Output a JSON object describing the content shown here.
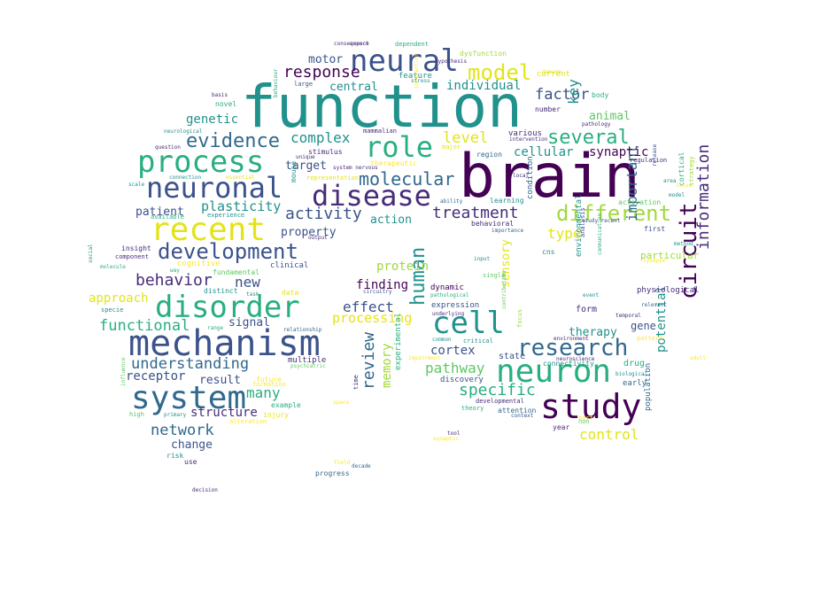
{
  "palette": {
    "dark-purple": "#440154",
    "indigo": "#472c7a",
    "blue": "#3b528b",
    "blue-teal": "#31688e",
    "teal": "#21918c",
    "green-teal": "#29af7f",
    "green": "#5ec962",
    "lime": "#9fda3a",
    "yellow": "#e3e418",
    "yellow-bright": "#fde725"
  },
  "words": [
    {
      "t": "brain",
      "c": "dark-purple"
    },
    {
      "t": "function",
      "c": "teal"
    },
    {
      "t": "neural",
      "c": "blue"
    },
    {
      "t": "mechanism",
      "c": "blue"
    },
    {
      "t": "study",
      "c": "dark-purple"
    },
    {
      "t": "neuron",
      "c": "green-teal"
    },
    {
      "t": "disorder",
      "c": "green-teal"
    },
    {
      "t": "system",
      "c": "blue-teal"
    },
    {
      "t": "process",
      "c": "green-teal"
    },
    {
      "t": "recent",
      "c": "yellow"
    },
    {
      "t": "neuronal",
      "c": "blue"
    },
    {
      "t": "disease",
      "c": "indigo"
    },
    {
      "t": "cell",
      "c": "teal"
    },
    {
      "t": "role",
      "c": "green-teal"
    },
    {
      "t": "circuit",
      "c": "dark-purple"
    },
    {
      "t": "human",
      "c": "teal"
    },
    {
      "t": "model",
      "c": "yellow"
    },
    {
      "t": "research",
      "c": "blue-teal"
    },
    {
      "t": "development",
      "c": "blue"
    },
    {
      "t": "different",
      "c": "lime"
    },
    {
      "t": "evidence",
      "c": "blue-teal"
    },
    {
      "t": "several",
      "c": "green-teal"
    },
    {
      "t": "molecular",
      "c": "blue-teal"
    },
    {
      "t": "response",
      "c": "dark-purple"
    },
    {
      "t": "specific",
      "c": "green-teal"
    },
    {
      "t": "information",
      "c": "indigo"
    },
    {
      "t": "activity",
      "c": "blue"
    },
    {
      "t": "treatment",
      "c": "indigo"
    },
    {
      "t": "behavior",
      "c": "indigo"
    },
    {
      "t": "functional",
      "c": "green-teal"
    },
    {
      "t": "understanding",
      "c": "blue-teal"
    },
    {
      "t": "complex",
      "c": "teal"
    },
    {
      "t": "review",
      "c": "blue-teal"
    },
    {
      "t": "important",
      "c": "blue-teal"
    },
    {
      "t": "pathway",
      "c": "green"
    },
    {
      "t": "level",
      "c": "yellow"
    },
    {
      "t": "factor",
      "c": "blue"
    },
    {
      "t": "network",
      "c": "blue-teal"
    },
    {
      "t": "potential",
      "c": "teal"
    },
    {
      "t": "many",
      "c": "green-teal"
    },
    {
      "t": "control",
      "c": "yellow"
    },
    {
      "t": "type",
      "c": "yellow"
    },
    {
      "t": "individual",
      "c": "teal"
    },
    {
      "t": "sensory",
      "c": "yellow"
    },
    {
      "t": "new",
      "c": "blue"
    },
    {
      "t": "effect",
      "c": "blue"
    },
    {
      "t": "processing",
      "c": "yellow"
    },
    {
      "t": "plasticity",
      "c": "teal"
    },
    {
      "t": "signal",
      "c": "blue"
    },
    {
      "t": "structure",
      "c": "indigo"
    },
    {
      "t": "receptor",
      "c": "blue"
    },
    {
      "t": "cellular",
      "c": "teal"
    },
    {
      "t": "synaptic",
      "c": "dark-purple"
    },
    {
      "t": "approach",
      "c": "yellow"
    },
    {
      "t": "patient",
      "c": "blue"
    },
    {
      "t": "result",
      "c": "blue"
    },
    {
      "t": "cortex",
      "c": "blue"
    },
    {
      "t": "finding",
      "c": "dark-purple"
    },
    {
      "t": "action",
      "c": "teal"
    },
    {
      "t": "target",
      "c": "blue"
    },
    {
      "t": "property",
      "c": "blue"
    },
    {
      "t": "therapy",
      "c": "teal"
    },
    {
      "t": "central",
      "c": "teal"
    },
    {
      "t": "motor",
      "c": "blue"
    },
    {
      "t": "genetic",
      "c": "teal"
    },
    {
      "t": "animal",
      "c": "green"
    },
    {
      "t": "key",
      "c": "teal"
    },
    {
      "t": "protein",
      "c": "lime"
    },
    {
      "t": "memory",
      "c": "lime"
    },
    {
      "t": "gene",
      "c": "blue"
    },
    {
      "t": "change",
      "c": "blue"
    },
    {
      "t": "form",
      "c": "indigo"
    },
    {
      "t": "particular",
      "c": "lime"
    },
    {
      "t": "physiological",
      "c": "indigo"
    },
    {
      "t": "drug",
      "c": "green-teal"
    },
    {
      "t": "state",
      "c": "blue"
    },
    {
      "t": "discovery",
      "c": "blue"
    },
    {
      "t": "expression",
      "c": "blue"
    },
    {
      "t": "experimental",
      "c": "green-teal"
    },
    {
      "t": "population",
      "c": "blue-teal"
    },
    {
      "t": "condition",
      "c": "blue-teal"
    },
    {
      "t": "environmental",
      "c": "teal"
    },
    {
      "t": "dynamic",
      "c": "dark-purple"
    },
    {
      "t": "current",
      "c": "yellow"
    },
    {
      "t": "various",
      "c": "indigo"
    },
    {
      "t": "multiple",
      "c": "indigo"
    },
    {
      "t": "clinical",
      "c": "blue"
    },
    {
      "t": "early",
      "c": "blue-teal"
    },
    {
      "t": "example",
      "c": "green-teal"
    },
    {
      "t": "feature",
      "c": "teal"
    },
    {
      "t": "number",
      "c": "indigo"
    },
    {
      "t": "first",
      "c": "blue"
    },
    {
      "t": "region",
      "c": "blue-teal"
    },
    {
      "t": "stimulus",
      "c": "indigo"
    },
    {
      "t": "distinct",
      "c": "teal"
    },
    {
      "t": "attention",
      "c": "blue-teal"
    },
    {
      "t": "experience",
      "c": "teal"
    },
    {
      "t": "mammalian",
      "c": "indigo"
    },
    {
      "t": "insight",
      "c": "indigo"
    },
    {
      "t": "progress",
      "c": "blue-teal"
    },
    {
      "t": "learning",
      "c": "teal"
    },
    {
      "t": "cortical",
      "c": "green-teal"
    },
    {
      "t": "specie",
      "c": "teal"
    },
    {
      "t": "dysfunction",
      "c": "lime"
    },
    {
      "t": "time",
      "c": "indigo"
    },
    {
      "t": "large",
      "c": "blue"
    },
    {
      "t": "year",
      "c": "indigo"
    },
    {
      "t": "behavioral",
      "c": "indigo"
    },
    {
      "t": "component",
      "c": "indigo"
    },
    {
      "t": "fundamental",
      "c": "green"
    },
    {
      "t": "cns",
      "c": "teal"
    },
    {
      "t": "critical",
      "c": "teal"
    },
    {
      "t": "connectivity",
      "c": "teal"
    },
    {
      "t": "cognitive",
      "c": "yellow-bright"
    },
    {
      "t": "strategy",
      "c": "lime"
    },
    {
      "t": "data",
      "c": "yellow"
    },
    {
      "t": "use",
      "c": "indigo"
    },
    {
      "t": "mouse",
      "c": "teal"
    },
    {
      "t": "dependent",
      "c": "green-teal"
    },
    {
      "t": "novel",
      "c": "green-teal"
    },
    {
      "t": "developmental",
      "c": "indigo"
    },
    {
      "t": "non",
      "c": "green"
    },
    {
      "t": "risk",
      "c": "teal"
    },
    {
      "t": "analysis",
      "c": "blue"
    },
    {
      "t": "intervention",
      "c": "indigo"
    },
    {
      "t": "part",
      "c": "yellow-bright"
    },
    {
      "t": "focus",
      "c": "lime"
    },
    {
      "t": "future",
      "c": "yellow-bright"
    },
    {
      "t": "basis",
      "c": "indigo"
    },
    {
      "t": "injury",
      "c": "yellow"
    },
    {
      "t": "regulation",
      "c": "indigo"
    },
    {
      "t": "single",
      "c": "green"
    },
    {
      "t": "interaction",
      "c": "yellow-bright"
    },
    {
      "t": "underlying",
      "c": "indigo"
    },
    {
      "t": "circuitry",
      "c": "blue"
    },
    {
      "t": "temporal",
      "c": "indigo"
    },
    {
      "t": "pattern",
      "c": "yellow-bright"
    },
    {
      "t": "environment",
      "c": "indigo"
    },
    {
      "t": "context",
      "c": "blue"
    },
    {
      "t": "relevant",
      "c": "blue-teal"
    },
    {
      "t": "question",
      "c": "indigo"
    },
    {
      "t": "tool",
      "c": "indigo"
    },
    {
      "t": "activation",
      "c": "green"
    },
    {
      "t": "body",
      "c": "green-teal"
    },
    {
      "t": "scale",
      "c": "teal"
    },
    {
      "t": "decision",
      "c": "indigo"
    },
    {
      "t": "ability",
      "c": "blue-teal"
    },
    {
      "t": "importance",
      "c": "blue-teal"
    },
    {
      "t": "method",
      "c": "teal"
    },
    {
      "t": "primary",
      "c": "teal"
    },
    {
      "t": "local",
      "c": "indigo"
    },
    {
      "t": "psychiatric",
      "c": "green"
    },
    {
      "t": "hypothesis",
      "c": "indigo"
    },
    {
      "t": "neurological",
      "c": "teal"
    },
    {
      "t": "unique",
      "c": "indigo"
    },
    {
      "t": "social",
      "c": "teal"
    },
    {
      "t": "communication",
      "c": "green-teal"
    },
    {
      "t": "aspect",
      "c": "indigo"
    },
    {
      "t": "consequence",
      "c": "indigo"
    },
    {
      "t": "system nervous",
      "c": "indigo"
    },
    {
      "t": "connection",
      "c": "teal"
    },
    {
      "t": "essential",
      "c": "yellow"
    },
    {
      "t": "representation",
      "c": "yellow"
    },
    {
      "t": "therapeutic",
      "c": "yellow-bright"
    },
    {
      "t": "major",
      "c": "yellow"
    },
    {
      "t": "available",
      "c": "green-teal"
    },
    {
      "t": "pathology",
      "c": "indigo"
    },
    {
      "t": "output",
      "c": "indigo"
    },
    {
      "t": "stress",
      "c": "teal"
    },
    {
      "t": "damage",
      "c": "yellow"
    },
    {
      "t": "event",
      "c": "teal"
    },
    {
      "t": "release",
      "c": "blue"
    },
    {
      "t": "study recent",
      "c": "blue"
    },
    {
      "t": "alteration",
      "c": "yellow-bright"
    },
    {
      "t": "formation",
      "c": "yellow-bright"
    },
    {
      "t": "relationship",
      "c": "blue-teal"
    },
    {
      "t": "range",
      "c": "green-teal"
    },
    {
      "t": "pathological",
      "c": "green-teal"
    },
    {
      "t": "impairment",
      "c": "yellow-bright"
    },
    {
      "t": "input",
      "c": "teal"
    },
    {
      "t": "contribution",
      "c": "green"
    },
    {
      "t": "common",
      "c": "teal"
    },
    {
      "t": "neuroscience",
      "c": "indigo"
    },
    {
      "t": "biological",
      "c": "teal"
    },
    {
      "t": "adult",
      "c": "yellow-bright"
    },
    {
      "t": "influence",
      "c": "green"
    },
    {
      "t": "theory",
      "c": "green-teal"
    },
    {
      "t": "behaviour",
      "c": "green-teal"
    },
    {
      "t": "space",
      "c": "yellow-bright"
    },
    {
      "t": "field",
      "c": "yellow-bright"
    },
    {
      "t": "decade",
      "c": "blue-teal"
    },
    {
      "t": "synaptic",
      "c": "yellow-bright"
    },
    {
      "t": "task",
      "c": "teal"
    },
    {
      "t": "way",
      "c": "green-teal"
    },
    {
      "t": "molecule",
      "c": "green-teal"
    },
    {
      "t": "synapse",
      "c": "yellow-bright"
    },
    {
      "t": "high",
      "c": "green"
    },
    {
      "t": "issue",
      "c": "yellow-bright"
    },
    {
      "t": "area",
      "c": "teal"
    },
    {
      "t": "model",
      "c": "teal"
    }
  ]
}
